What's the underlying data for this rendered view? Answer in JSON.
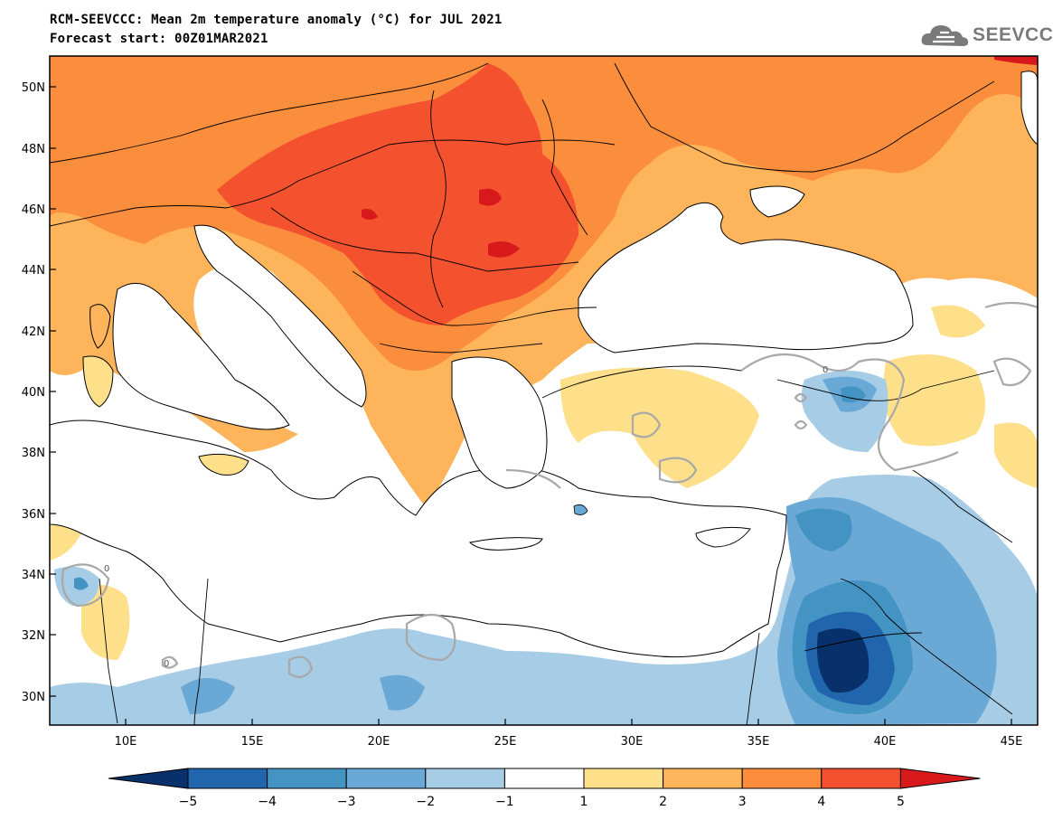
{
  "title": "RCM-SEEVCCC: Mean 2m temperature anomaly (°C) for JUL 2021",
  "subtitle": "Forecast start: 00Z01MAR2021",
  "logo_text": "SEEVCCC",
  "map": {
    "projection": "lat-lon",
    "lon_range": [
      7,
      46
    ],
    "lat_range": [
      29,
      51
    ],
    "lat_ticks": [
      "50N",
      "48N",
      "46N",
      "44N",
      "42N",
      "40N",
      "38N",
      "36N",
      "34N",
      "32N",
      "30N"
    ],
    "lon_ticks": [
      "10E",
      "15E",
      "20E",
      "25E",
      "30E",
      "35E",
      "40E",
      "45E"
    ],
    "contour_label": "0"
  },
  "colorbar": {
    "levels": [
      "−5",
      "−4",
      "−3",
      "−2",
      "−1",
      "1",
      "2",
      "3",
      "4",
      "5"
    ],
    "colors": [
      "#08306b",
      "#2166ac",
      "#4393c3",
      "#6aa8d6",
      "#a6cce6",
      "#ffffff",
      "#fee08b",
      "#fdb45a",
      "#fb8c3c",
      "#f4522f",
      "#d7191c"
    ]
  }
}
